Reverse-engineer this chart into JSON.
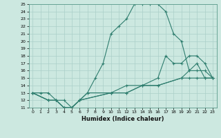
{
  "xlabel": "Humidex (Indice chaleur)",
  "bg_color": "#cce8e0",
  "line_color": "#2e7d6e",
  "grid_color": "#aacfc8",
  "ylim": [
    11,
    25
  ],
  "xlim": [
    -0.5,
    23.5
  ],
  "yticks": [
    11,
    12,
    13,
    14,
    15,
    16,
    17,
    18,
    19,
    20,
    21,
    22,
    23,
    24,
    25
  ],
  "xticks": [
    0,
    1,
    2,
    3,
    4,
    5,
    6,
    7,
    8,
    9,
    10,
    11,
    12,
    13,
    14,
    15,
    16,
    17,
    18,
    19,
    20,
    21,
    22,
    23
  ],
  "curve1_x": [
    0,
    1,
    2,
    3,
    4,
    5,
    6,
    7,
    8,
    9,
    10,
    11,
    12,
    13,
    14,
    15,
    16,
    17,
    18,
    19,
    20,
    21,
    22,
    23
  ],
  "curve1_y": [
    13,
    13,
    13,
    12,
    12,
    11,
    12,
    13,
    15,
    17,
    21,
    22,
    23,
    25,
    25,
    25,
    25,
    24,
    21,
    20,
    16,
    17,
    15,
    15
  ],
  "curve2_x": [
    0,
    2,
    3,
    4,
    5,
    6,
    7,
    10,
    12,
    14,
    16,
    17,
    18,
    19,
    20,
    21,
    22,
    23
  ],
  "curve2_y": [
    13,
    12,
    12,
    11,
    11,
    12,
    13,
    13,
    14,
    14,
    15,
    18,
    17,
    17,
    18,
    18,
    17,
    15
  ],
  "curve3_x": [
    0,
    2,
    3,
    4,
    5,
    6,
    10,
    12,
    14,
    16,
    19,
    20,
    21,
    22,
    23
  ],
  "curve3_y": [
    13,
    12,
    12,
    11,
    11,
    12,
    13,
    13,
    14,
    14,
    15,
    15,
    15,
    15,
    15
  ],
  "curve4_x": [
    0,
    2,
    3,
    4,
    5,
    6,
    10,
    12,
    14,
    16,
    19,
    20,
    21,
    22,
    23
  ],
  "curve4_y": [
    13,
    12,
    12,
    11,
    11,
    12,
    13,
    13,
    14,
    14,
    15,
    16,
    16,
    16,
    15
  ]
}
